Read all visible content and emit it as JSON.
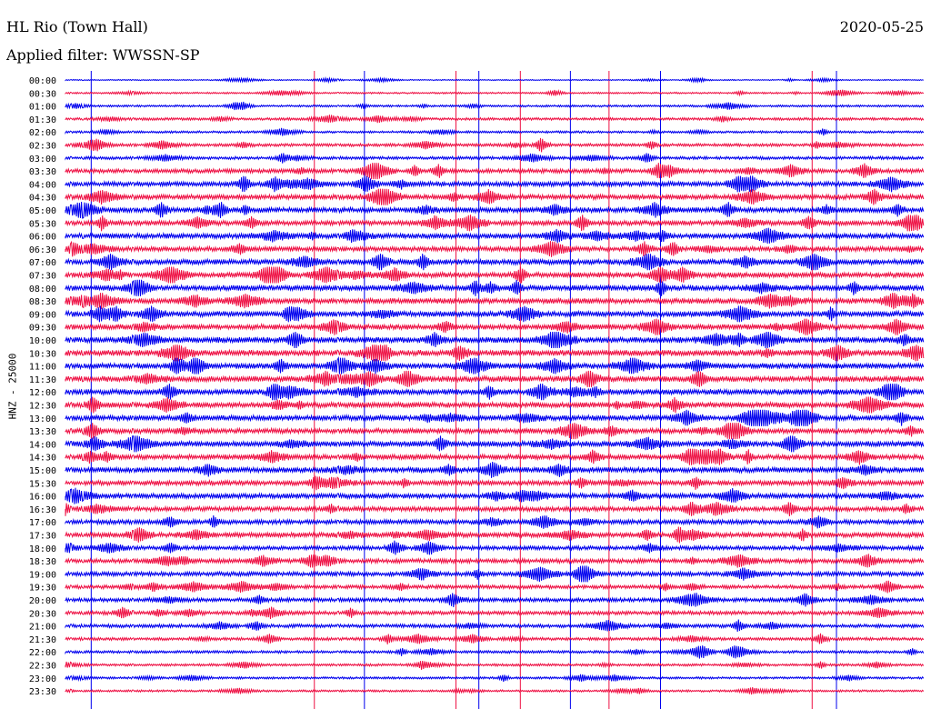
{
  "header": {
    "station": "HL Rio (Town Hall)",
    "filter": "Applied filter: WWSSN-SP",
    "date": "2020-05-25",
    "channel_label": "HNZ - 25000"
  },
  "chart_data": {
    "type": "line",
    "title": "HL Rio (Town Hall)",
    "subtitle": "Applied filter: WWSSN-SP",
    "ylabel": "HNZ - 25000",
    "row_times": [
      "00:00",
      "00:30",
      "01:00",
      "01:30",
      "02:00",
      "02:30",
      "03:00",
      "03:30",
      "04:00",
      "04:30",
      "05:00",
      "05:30",
      "06:00",
      "06:30",
      "07:00",
      "07:30",
      "08:00",
      "08:30",
      "09:00",
      "09:30",
      "10:00",
      "10:30",
      "11:00",
      "11:30",
      "12:00",
      "12:30",
      "13:00",
      "13:30",
      "14:00",
      "14:30",
      "15:00",
      "15:30",
      "16:00",
      "16:30",
      "17:00",
      "17:30",
      "18:00",
      "18:30",
      "19:00",
      "19:30",
      "20:00",
      "20:30",
      "21:00",
      "21:30",
      "22:00",
      "22:30",
      "23:00",
      "23:30"
    ],
    "series_colors": [
      "#0000ee",
      "#ee1144"
    ],
    "noise_amplitude": [
      0.6,
      0.9,
      1.1,
      1.4,
      1.2,
      1.6,
      1.6,
      2.2,
      2.5,
      2.6,
      2.8,
      2.6,
      2.8,
      2.6,
      2.9,
      2.8,
      3.0,
      2.9,
      3.0,
      2.9,
      3.1,
      3.2,
      3.0,
      3.1,
      3.0,
      2.9,
      2.9,
      2.7,
      3.0,
      2.7,
      2.9,
      2.6,
      2.7,
      2.5,
      2.4,
      2.6,
      2.2,
      2.3,
      2.3,
      2.0,
      2.1,
      2.0,
      1.9,
      1.6,
      1.4,
      1.3,
      1.2,
      1.1
    ],
    "vertical_markers": [
      {
        "minute": 1.8,
        "color": "#0000ee"
      },
      {
        "minute": 17.4,
        "color": "#ee1144"
      },
      {
        "minute": 20.9,
        "color": "#0000ee"
      },
      {
        "minute": 27.3,
        "color": "#ee1144"
      },
      {
        "minute": 28.9,
        "color": "#0000ee"
      },
      {
        "minute": 31.8,
        "color": "#ee1144"
      },
      {
        "minute": 35.3,
        "color": "#0000ee"
      },
      {
        "minute": 38.0,
        "color": "#ee1144"
      },
      {
        "minute": 41.6,
        "color": "#0000ee"
      },
      {
        "minute": 52.2,
        "color": "#ee1144"
      },
      {
        "minute": 53.9,
        "color": "#0000ee"
      }
    ]
  }
}
